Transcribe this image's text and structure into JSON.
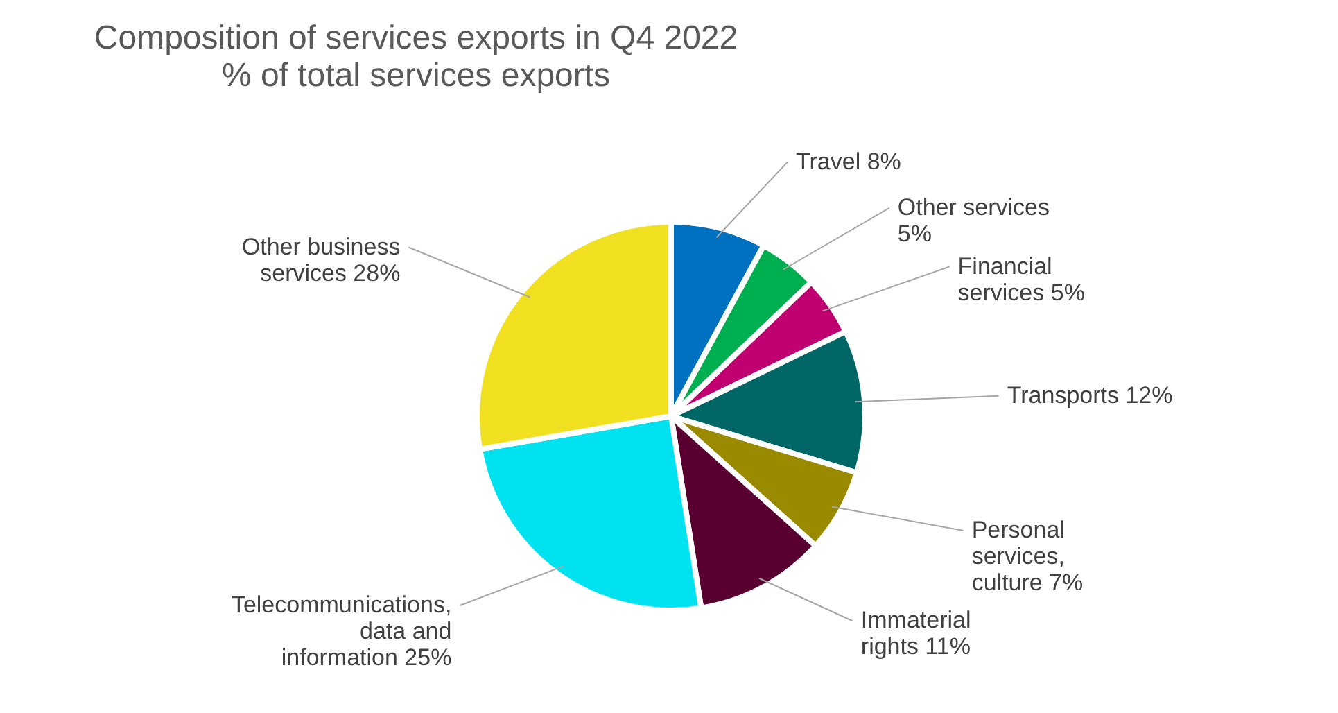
{
  "chart_data": {
    "type": "pie",
    "title": "Composition of services exports in Q4 2022",
    "subtitle": "% of total services exports",
    "categories": [
      "Travel",
      "Other services",
      "Financial services",
      "Transports",
      "Personal services, culture",
      "Immaterial rights",
      "Telecommunications, data and information",
      "Other business services"
    ],
    "values": [
      8,
      5,
      5,
      12,
      7,
      11,
      25,
      28
    ],
    "value_labels": [
      "8%",
      "5%",
      "5%",
      "12%",
      "7%",
      "11%",
      "25%",
      "28%"
    ],
    "colors": [
      "#0070c0",
      "#00b050",
      "#c00070",
      "#006666",
      "#9a8a00",
      "#5a0030",
      "#00e2ef",
      "#f0e020"
    ]
  }
}
